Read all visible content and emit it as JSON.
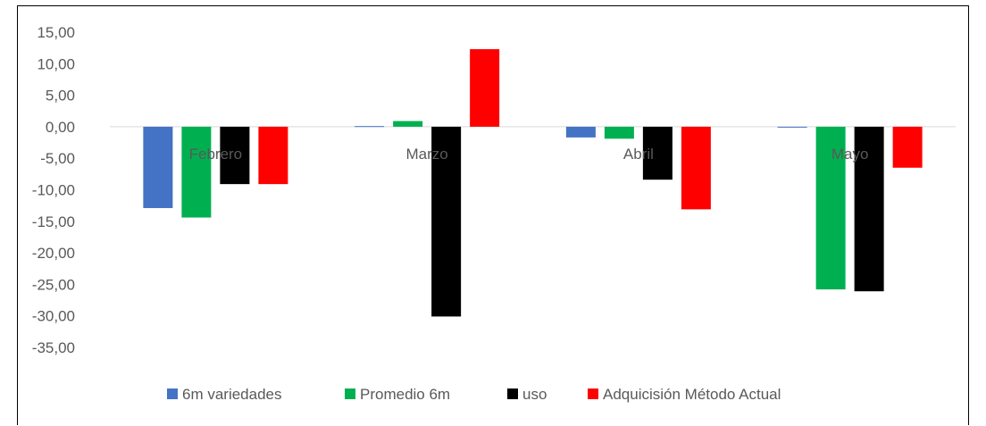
{
  "chart_data": {
    "type": "bar",
    "title": "",
    "xlabel": "",
    "ylabel": "",
    "categories": [
      "Febrero",
      "Marzo",
      "Abril",
      "Mayo"
    ],
    "ylim": [
      -35,
      15
    ],
    "ytick_step": 5,
    "ytick_labels": [
      "15,00",
      "10,00",
      "5,00",
      "0,00",
      "-5,00",
      "-10,00",
      "-15,00",
      "-20,00",
      "-25,00",
      "-30,00",
      "-35,00"
    ],
    "grid": false,
    "legend_position": "bottom",
    "series": [
      {
        "name": "6m variedades",
        "color": "#4472C4",
        "values": [
          -12.9,
          0.1,
          -1.7,
          -0.1
        ]
      },
      {
        "name": "Promedio 6m",
        "color": "#00B050",
        "values": [
          -14.4,
          0.9,
          -1.9,
          -25.8
        ]
      },
      {
        "name": "uso",
        "color": "#000000",
        "values": [
          -9.1,
          -30.1,
          -8.4,
          -26.1
        ]
      },
      {
        "name": "Adquicisión Método Actual",
        "color": "#FF0000",
        "values": [
          -9.1,
          12.3,
          -13.1,
          -6.5
        ]
      }
    ]
  }
}
